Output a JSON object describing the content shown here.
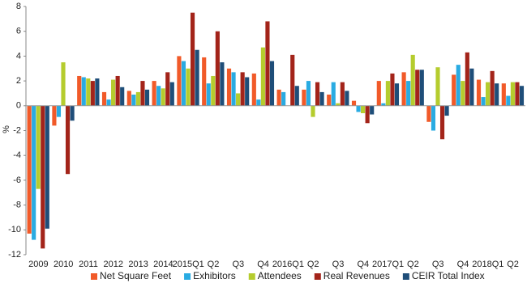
{
  "chart_data": {
    "type": "bar",
    "y_label": "%",
    "categories": [
      "2009",
      "2010",
      "2011",
      "2012",
      "2013",
      "2014",
      "2015Q1",
      "Q2",
      "Q3",
      "Q4",
      "2016Q1",
      "Q2",
      "Q3",
      "Q4",
      "2017Q1",
      "Q2",
      "Q3",
      "Q4",
      "2018Q1",
      "Q2"
    ],
    "series": [
      {
        "name": "Net Square Feet",
        "color": "#f15a29",
        "values": [
          -10.3,
          -1.6,
          2.4,
          1.1,
          1.2,
          2.0,
          4.0,
          3.9,
          3.0,
          2.6,
          1.3,
          1.3,
          0.9,
          0.4,
          2.0,
          2.7,
          -1.3,
          2.5,
          2.1,
          1.8
        ]
      },
      {
        "name": "Exhibitors",
        "color": "#29abe2",
        "values": [
          -10.8,
          -0.9,
          2.3,
          0.5,
          0.9,
          1.6,
          3.6,
          1.8,
          2.7,
          0.5,
          1.1,
          2.0,
          1.9,
          -0.5,
          0.2,
          2.0,
          -2.0,
          3.3,
          0.7,
          0.8
        ]
      },
      {
        "name": "Attendees",
        "color": "#b5cc2e",
        "values": [
          -6.7,
          3.5,
          2.2,
          2.1,
          1.1,
          1.4,
          3.0,
          2.4,
          1.0,
          4.7,
          0.0,
          -0.9,
          0.2,
          -0.6,
          2.0,
          4.1,
          3.1,
          2.0,
          1.9,
          1.9
        ]
      },
      {
        "name": "Real Revenues",
        "color": "#a3241a",
        "values": [
          -11.5,
          -5.5,
          2.0,
          2.4,
          2.0,
          2.7,
          7.5,
          6.0,
          2.7,
          6.8,
          4.1,
          1.9,
          1.9,
          -1.4,
          2.6,
          2.9,
          -2.7,
          4.3,
          2.8,
          1.9
        ]
      },
      {
        "name": "CEIR Total Index",
        "color": "#1f4e79",
        "values": [
          -9.9,
          -1.2,
          2.2,
          1.5,
          1.3,
          1.9,
          4.5,
          3.5,
          2.3,
          3.6,
          1.6,
          1.1,
          1.2,
          -0.7,
          1.8,
          2.9,
          -0.8,
          3.0,
          1.8,
          1.6
        ]
      }
    ],
    "ylim": [
      -12,
      8
    ],
    "yticks": [
      -12,
      -10,
      -8,
      -6,
      -4,
      -2,
      0,
      2,
      4,
      6,
      8
    ],
    "grid": false,
    "legend": "bottom"
  }
}
